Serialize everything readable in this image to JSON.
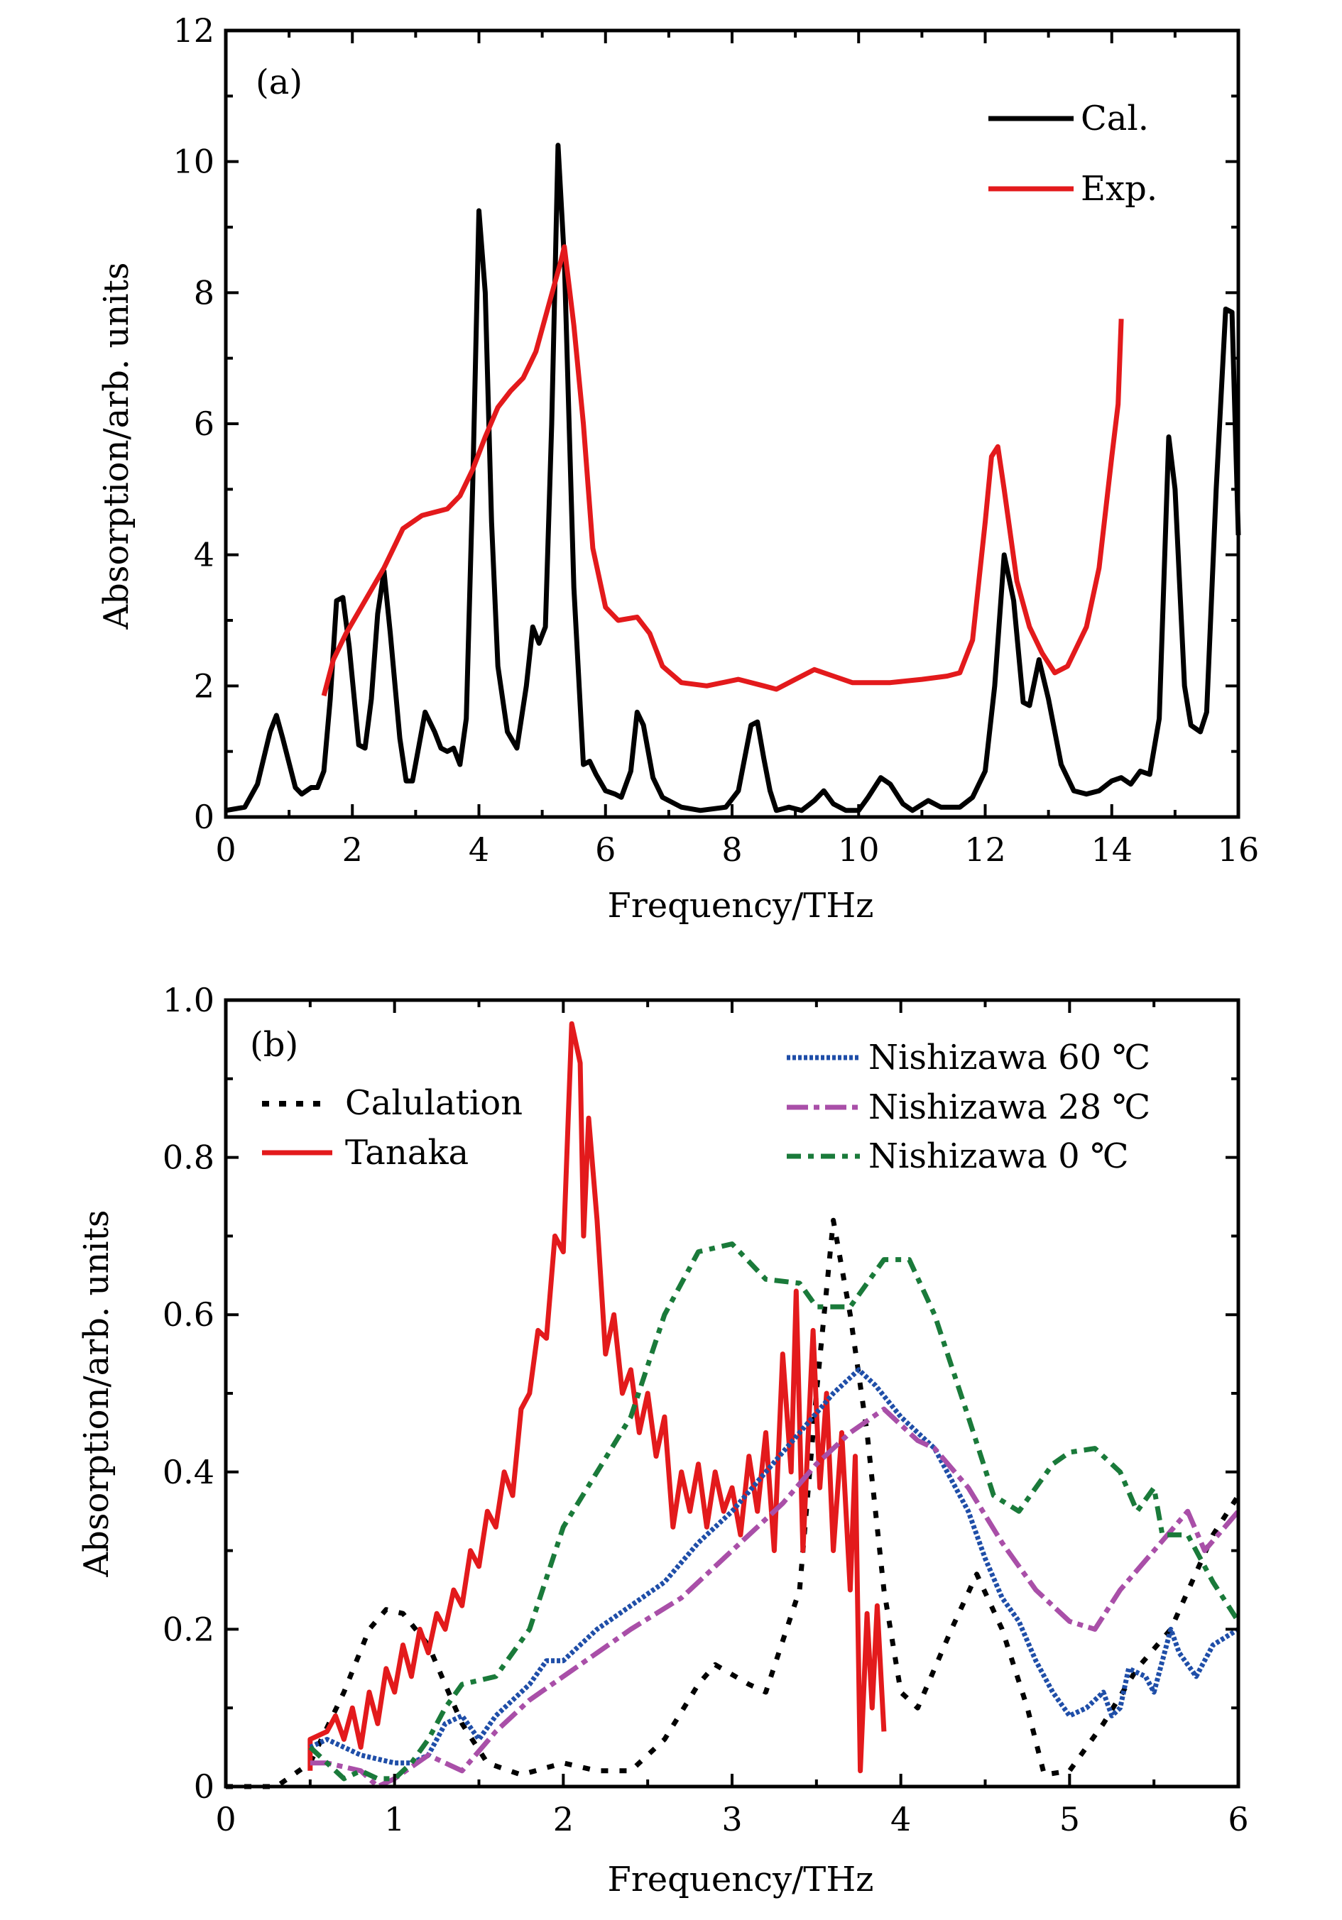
{
  "chart_data": [
    {
      "type": "line",
      "panel_label": "(a)",
      "xlabel": "Frequency/THz",
      "ylabel": "Absorption/arb. units",
      "xlim": [
        0,
        16
      ],
      "ylim": [
        0,
        12
      ],
      "xticks": [
        0,
        2,
        4,
        6,
        8,
        10,
        12,
        14,
        16
      ],
      "yticks": [
        0,
        2,
        4,
        6,
        8,
        10,
        12
      ],
      "xminor": 1,
      "yminor": 1,
      "grid": false,
      "legend_position": "top-right",
      "series": [
        {
          "name": "Cal.",
          "color": "#000000",
          "style": "solid",
          "x": [
            0,
            0.3,
            0.5,
            0.7,
            0.8,
            0.9,
            1.1,
            1.2,
            1.35,
            1.45,
            1.55,
            1.65,
            1.75,
            1.85,
            1.95,
            2.1,
            2.2,
            2.3,
            2.4,
            2.5,
            2.6,
            2.75,
            2.85,
            2.95,
            3.15,
            3.3,
            3.4,
            3.5,
            3.6,
            3.7,
            3.8,
            3.9,
            4.0,
            4.1,
            4.2,
            4.3,
            4.45,
            4.6,
            4.75,
            4.85,
            4.95,
            5.05,
            5.15,
            5.25,
            5.35,
            5.5,
            5.65,
            5.75,
            5.85,
            6.0,
            6.15,
            6.25,
            6.4,
            6.5,
            6.6,
            6.75,
            6.9,
            7.2,
            7.5,
            7.9,
            8.1,
            8.3,
            8.4,
            8.5,
            8.6,
            8.7,
            8.9,
            9.1,
            9.3,
            9.45,
            9.6,
            9.8,
            10.0,
            10.15,
            10.35,
            10.5,
            10.7,
            10.85,
            11.1,
            11.3,
            11.6,
            11.8,
            12.0,
            12.15,
            12.3,
            12.45,
            12.6,
            12.7,
            12.85,
            13.0,
            13.2,
            13.4,
            13.6,
            13.8,
            14.0,
            14.15,
            14.3,
            14.45,
            14.6,
            14.75,
            14.9,
            15.0,
            15.15,
            15.25,
            15.4,
            15.5,
            15.65,
            15.8,
            15.9,
            16.0
          ],
          "y": [
            0.1,
            0.15,
            0.5,
            1.3,
            1.55,
            1.2,
            0.45,
            0.35,
            0.45,
            0.45,
            0.7,
            1.8,
            3.3,
            3.35,
            2.6,
            1.1,
            1.05,
            1.8,
            3.1,
            3.75,
            2.8,
            1.2,
            0.55,
            0.55,
            1.6,
            1.3,
            1.05,
            1.0,
            1.05,
            0.8,
            1.5,
            5.0,
            9.25,
            8.0,
            4.5,
            2.3,
            1.3,
            1.05,
            2.0,
            2.9,
            2.65,
            2.9,
            6.0,
            10.25,
            8.5,
            3.5,
            0.8,
            0.85,
            0.65,
            0.4,
            0.35,
            0.3,
            0.7,
            1.6,
            1.4,
            0.6,
            0.3,
            0.15,
            0.1,
            0.15,
            0.4,
            1.4,
            1.45,
            0.9,
            0.4,
            0.1,
            0.15,
            0.1,
            0.25,
            0.4,
            0.2,
            0.1,
            0.1,
            0.3,
            0.6,
            0.5,
            0.2,
            0.1,
            0.25,
            0.15,
            0.15,
            0.3,
            0.7,
            2.0,
            4.0,
            3.3,
            1.75,
            1.7,
            2.4,
            1.8,
            0.8,
            0.4,
            0.35,
            0.4,
            0.55,
            0.6,
            0.5,
            0.7,
            0.65,
            1.5,
            5.8,
            5.0,
            2.0,
            1.4,
            1.3,
            1.6,
            5.0,
            7.75,
            7.7,
            4.3
          ]
        },
        {
          "name": "Exp.",
          "color": "#e31a1c",
          "style": "solid",
          "x": [
            1.55,
            1.7,
            1.9,
            2.2,
            2.5,
            2.8,
            3.1,
            3.3,
            3.5,
            3.7,
            3.9,
            4.1,
            4.3,
            4.5,
            4.7,
            4.9,
            5.1,
            5.3,
            5.35,
            5.5,
            5.65,
            5.8,
            6.0,
            6.2,
            6.5,
            6.7,
            6.9,
            7.2,
            7.6,
            8.1,
            8.5,
            8.7,
            9.0,
            9.3,
            9.6,
            9.9,
            10.5,
            11.0,
            11.4,
            11.6,
            11.8,
            12.0,
            12.1,
            12.2,
            12.3,
            12.5,
            12.7,
            12.9,
            13.1,
            13.3,
            13.6,
            13.8,
            14.0,
            14.1,
            14.15
          ],
          "y": [
            1.85,
            2.4,
            2.8,
            3.3,
            3.8,
            4.4,
            4.6,
            4.65,
            4.7,
            4.9,
            5.3,
            5.8,
            6.25,
            6.5,
            6.7,
            7.1,
            7.8,
            8.5,
            8.7,
            7.5,
            6.0,
            4.1,
            3.2,
            3.0,
            3.05,
            2.8,
            2.3,
            2.05,
            2.0,
            2.1,
            2.0,
            1.95,
            2.1,
            2.25,
            2.15,
            2.05,
            2.05,
            2.1,
            2.15,
            2.2,
            2.7,
            4.5,
            5.5,
            5.65,
            5.0,
            3.6,
            2.9,
            2.5,
            2.2,
            2.3,
            2.9,
            3.8,
            5.5,
            6.3,
            7.6
          ]
        }
      ]
    },
    {
      "type": "line",
      "panel_label": "(b)",
      "xlabel": "Frequency/THz",
      "ylabel": "Absorption/arb. units",
      "xlim": [
        0,
        6
      ],
      "ylim": [
        0,
        1.0
      ],
      "xticks": [
        0,
        1,
        2,
        3,
        4,
        5,
        6
      ],
      "yticks": [
        0,
        0.2,
        0.4,
        0.6,
        0.8,
        1.0
      ],
      "ytick_labels": [
        "0",
        "0.2",
        "0.4",
        "0.6",
        "0.8",
        "1.0"
      ],
      "xminor": 0.5,
      "yminor": 0.1,
      "grid": false,
      "legend_position": "top-left and top-right",
      "series": [
        {
          "name": "Calulation",
          "color": "#000000",
          "style": "dotted",
          "x": [
            0,
            0.3,
            0.5,
            0.7,
            0.85,
            0.95,
            1.05,
            1.2,
            1.4,
            1.55,
            1.75,
            2.0,
            2.2,
            2.4,
            2.6,
            2.8,
            2.9,
            3.1,
            3.2,
            3.4,
            3.5,
            3.6,
            3.7,
            3.8,
            3.9,
            4.0,
            4.1,
            4.3,
            4.45,
            4.6,
            4.75,
            4.85,
            5.0,
            5.2,
            5.4,
            5.6,
            5.85,
            6.0
          ],
          "y": [
            0,
            0,
            0.03,
            0.12,
            0.2,
            0.225,
            0.22,
            0.18,
            0.08,
            0.03,
            0.015,
            0.03,
            0.02,
            0.02,
            0.06,
            0.13,
            0.155,
            0.13,
            0.12,
            0.25,
            0.5,
            0.72,
            0.6,
            0.45,
            0.25,
            0.12,
            0.1,
            0.2,
            0.27,
            0.2,
            0.1,
            0.015,
            0.02,
            0.08,
            0.15,
            0.2,
            0.32,
            0.37
          ]
        },
        {
          "name": "Tanaka",
          "color": "#e31a1c",
          "style": "solid",
          "x": [
            0.5,
            0.5,
            0.6,
            0.65,
            0.7,
            0.75,
            0.8,
            0.85,
            0.9,
            0.95,
            1.0,
            1.05,
            1.1,
            1.15,
            1.2,
            1.25,
            1.3,
            1.35,
            1.4,
            1.45,
            1.5,
            1.55,
            1.6,
            1.65,
            1.7,
            1.75,
            1.8,
            1.85,
            1.9,
            1.95,
            2.0,
            2.05,
            2.1,
            2.12,
            2.15,
            2.2,
            2.25,
            2.3,
            2.35,
            2.4,
            2.45,
            2.5,
            2.55,
            2.6,
            2.65,
            2.7,
            2.75,
            2.8,
            2.85,
            2.9,
            2.95,
            3.0,
            3.05,
            3.1,
            3.15,
            3.2,
            3.25,
            3.3,
            3.35,
            3.38,
            3.42,
            3.48,
            3.52,
            3.56,
            3.6,
            3.65,
            3.7,
            3.73,
            3.76,
            3.8,
            3.83,
            3.86,
            3.9
          ],
          "y": [
            0.02,
            0.06,
            0.07,
            0.09,
            0.06,
            0.1,
            0.05,
            0.12,
            0.08,
            0.15,
            0.12,
            0.18,
            0.14,
            0.2,
            0.17,
            0.22,
            0.2,
            0.25,
            0.23,
            0.3,
            0.28,
            0.35,
            0.33,
            0.4,
            0.37,
            0.48,
            0.5,
            0.58,
            0.57,
            0.7,
            0.68,
            0.97,
            0.92,
            0.7,
            0.85,
            0.72,
            0.55,
            0.6,
            0.5,
            0.53,
            0.45,
            0.5,
            0.42,
            0.47,
            0.33,
            0.4,
            0.35,
            0.41,
            0.33,
            0.4,
            0.35,
            0.38,
            0.32,
            0.42,
            0.35,
            0.45,
            0.3,
            0.55,
            0.4,
            0.63,
            0.3,
            0.58,
            0.38,
            0.5,
            0.3,
            0.45,
            0.25,
            0.42,
            0.02,
            0.22,
            0.1,
            0.23,
            0.07
          ]
        },
        {
          "name": "Nishizawa 60 ℃",
          "color": "#1f4ea8",
          "style": "fine-dotted",
          "x": [
            0.5,
            0.6,
            0.7,
            0.8,
            0.9,
            1.0,
            1.1,
            1.2,
            1.3,
            1.4,
            1.5,
            1.6,
            1.8,
            1.9,
            2.0,
            2.2,
            2.4,
            2.6,
            2.8,
            3.0,
            3.2,
            3.4,
            3.6,
            3.75,
            3.85,
            4.0,
            4.2,
            4.4,
            4.5,
            4.6,
            4.7,
            4.8,
            4.9,
            5.0,
            5.1,
            5.2,
            5.25,
            5.3,
            5.35,
            5.45,
            5.5,
            5.6,
            5.65,
            5.75,
            5.85,
            6.0
          ],
          "y": [
            0.05,
            0.06,
            0.05,
            0.04,
            0.035,
            0.03,
            0.03,
            0.04,
            0.08,
            0.09,
            0.06,
            0.09,
            0.13,
            0.16,
            0.16,
            0.2,
            0.23,
            0.26,
            0.31,
            0.35,
            0.4,
            0.45,
            0.5,
            0.53,
            0.51,
            0.47,
            0.43,
            0.35,
            0.29,
            0.24,
            0.21,
            0.16,
            0.12,
            0.09,
            0.1,
            0.12,
            0.09,
            0.1,
            0.15,
            0.14,
            0.12,
            0.2,
            0.17,
            0.14,
            0.18,
            0.2
          ]
        },
        {
          "name": "Nishizawa 28 ℃",
          "color": "#a94fa8",
          "style": "dash-dot",
          "x": [
            0.5,
            0.6,
            0.8,
            0.9,
            1.0,
            1.2,
            1.4,
            1.6,
            1.8,
            2.0,
            2.2,
            2.4,
            2.7,
            3.0,
            3.3,
            3.5,
            3.7,
            3.9,
            4.1,
            4.2,
            4.4,
            4.6,
            4.8,
            5.0,
            5.15,
            5.3,
            5.5,
            5.7,
            5.8,
            6.0
          ],
          "y": [
            0.03,
            0.03,
            0.02,
            0.0,
            0.01,
            0.04,
            0.02,
            0.07,
            0.11,
            0.14,
            0.17,
            0.2,
            0.24,
            0.3,
            0.36,
            0.41,
            0.45,
            0.48,
            0.44,
            0.43,
            0.38,
            0.31,
            0.25,
            0.21,
            0.2,
            0.25,
            0.3,
            0.35,
            0.3,
            0.35
          ]
        },
        {
          "name": "Nishizawa 0 ℃",
          "color": "#1a7a3a",
          "style": "dash-dot",
          "x": [
            0.5,
            0.6,
            0.7,
            0.8,
            0.9,
            1.0,
            1.1,
            1.2,
            1.3,
            1.4,
            1.6,
            1.8,
            2.0,
            2.2,
            2.4,
            2.6,
            2.8,
            3.0,
            3.2,
            3.4,
            3.5,
            3.7,
            3.9,
            4.05,
            4.2,
            4.4,
            4.55,
            4.7,
            4.9,
            5.0,
            5.15,
            5.3,
            5.4,
            5.5,
            5.55,
            5.7,
            5.85,
            6.0
          ],
          "y": [
            0.05,
            0.03,
            0.01,
            0.02,
            0.01,
            0.01,
            0.03,
            0.06,
            0.1,
            0.13,
            0.14,
            0.2,
            0.33,
            0.4,
            0.47,
            0.6,
            0.68,
            0.69,
            0.645,
            0.64,
            0.61,
            0.61,
            0.67,
            0.67,
            0.6,
            0.47,
            0.37,
            0.35,
            0.41,
            0.425,
            0.43,
            0.4,
            0.35,
            0.38,
            0.32,
            0.32,
            0.26,
            0.21
          ]
        }
      ]
    }
  ]
}
